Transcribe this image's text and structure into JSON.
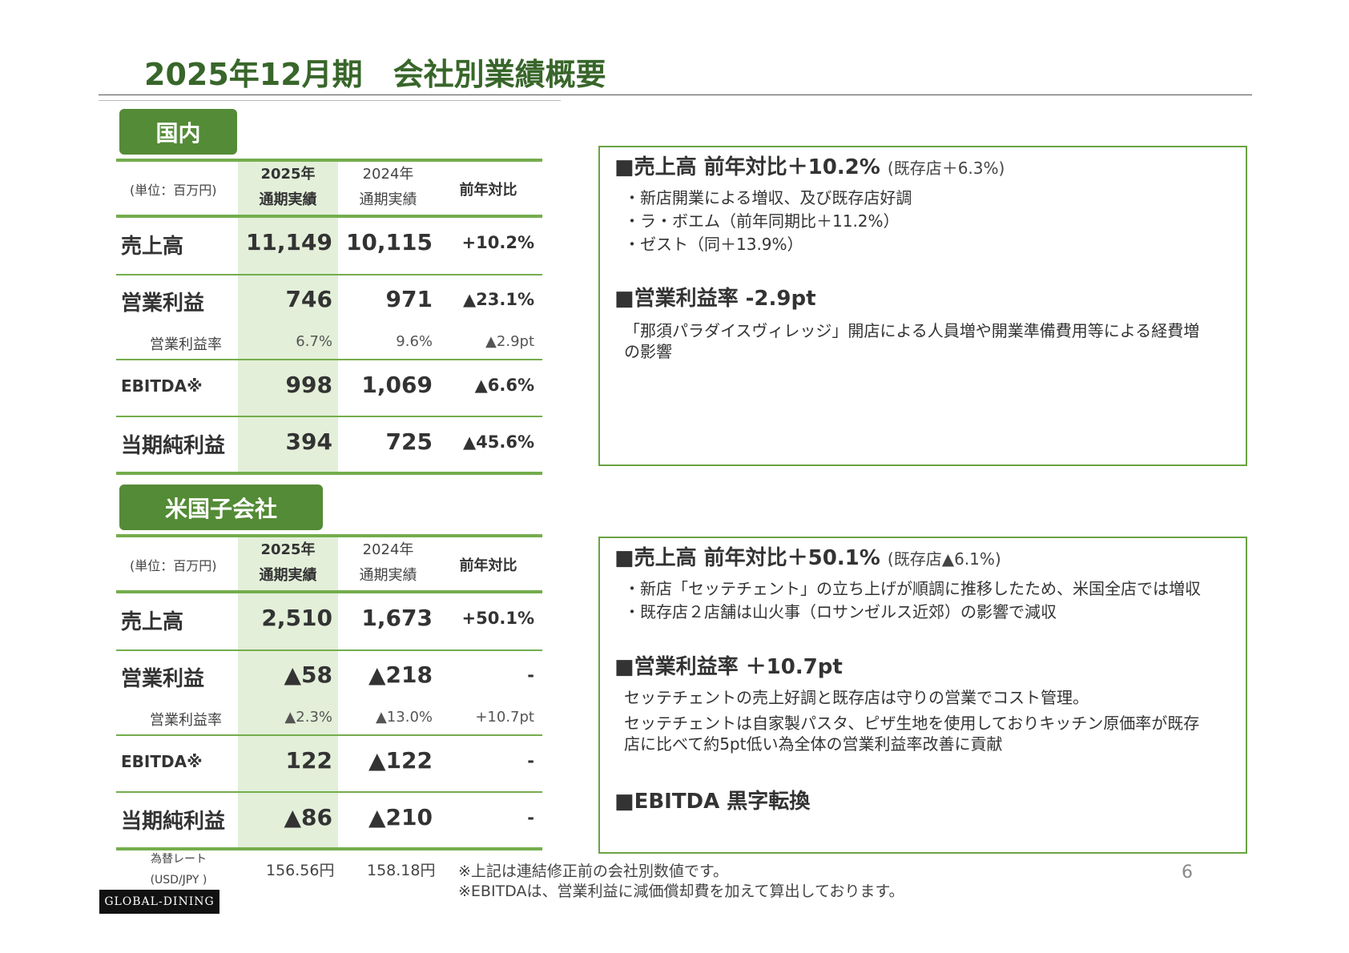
{
  "title": "2025年12月期　会社別業績概要",
  "domestic": {
    "tag": "国内",
    "header": {
      "unit": "(単位：百万円)",
      "y2025_a": "2025年",
      "y2025_b": "通期実績",
      "y2024_a": "2024年",
      "y2024_b": "通期実績",
      "yoy": "前年対比"
    },
    "rows": [
      {
        "label": "売上高",
        "v2025": "11,149",
        "v2024": "10,115",
        "yoy": "+10.2%"
      },
      {
        "label": "営業利益",
        "v2025": "746",
        "v2024": "971",
        "yoy": "▲23.1%"
      },
      {
        "label": "営業利益率",
        "v2025": "6.7%",
        "v2024": "9.6%",
        "yoy": "▲2.9pt"
      },
      {
        "label": "EBITDA※",
        "v2025": "998",
        "v2024": "1,069",
        "yoy": "▲6.6%"
      },
      {
        "label": "当期純利益",
        "v2025": "394",
        "v2024": "725",
        "yoy": "▲45.6%"
      }
    ],
    "box": {
      "h1": "■売上高 前年対比＋10.2%",
      "h1_small": "(既存店＋6.3%)",
      "b1": "・新店開業による増収、及び既存店好調",
      "b2": "・ラ・ボエム（前年同期比＋11.2%）",
      "b3": "・ゼスト（同＋13.9%）",
      "h2": "■営業利益率 -2.9pt",
      "p1": "「那須パラダイスヴィレッジ」開店による人員増や開業準備費用等による経費増",
      "p2": "の影響"
    }
  },
  "us": {
    "tag": "米国子会社",
    "header": {
      "unit": "(単位：百万円)",
      "y2025_a": "2025年",
      "y2025_b": "通期実績",
      "y2024_a": "2024年",
      "y2024_b": "通期実績",
      "yoy": "前年対比"
    },
    "rows": [
      {
        "label": "売上高",
        "v2025": "2,510",
        "v2024": "1,673",
        "yoy": "+50.1%"
      },
      {
        "label": "営業利益",
        "v2025": "▲58",
        "v2024": "▲218",
        "yoy": "-"
      },
      {
        "label": "営業利益率",
        "v2025": "▲2.3%",
        "v2024": "▲13.0%",
        "yoy": "+10.7pt"
      },
      {
        "label": "EBITDA※",
        "v2025": "122",
        "v2024": "▲122",
        "yoy": "-"
      },
      {
        "label": "当期純利益",
        "v2025": "▲86",
        "v2024": "▲210",
        "yoy": "-"
      }
    ],
    "fx": {
      "label1": "為替レート",
      "label2": "(USD/JPY )",
      "v2025": "156.56円",
      "v2024": "158.18円"
    },
    "box": {
      "h1": "■売上高 前年対比＋50.1%",
      "h1_small": "(既存店▲6.1%)",
      "b1": "・新店「セッテチェント」の立ち上げが順調に推移したため、米国全店では増収",
      "b2": "・既存店２店舗は山火事（ロサンゼルス近郊）の影響で減収",
      "h2": "■営業利益率 ＋10.7pt",
      "p1": "セッテチェントの売上好調と既存店は守りの営業でコスト管理。",
      "p2": "セッテチェントは自家製パスタ、ピザ生地を使用しておりキッチン原価率が既存",
      "p3": "店に比べて約5pt低い為全体の営業利益率改善に貢献",
      "h3": "■EBITDA 黒字転換"
    }
  },
  "notes": {
    "n1": "※上記は連結修正前の会社別数値です。",
    "n2": "※EBITDAは、営業利益に減価償却費を加えて算出しております。"
  },
  "page_number": "6",
  "logo": "GLOBAL-DINING"
}
